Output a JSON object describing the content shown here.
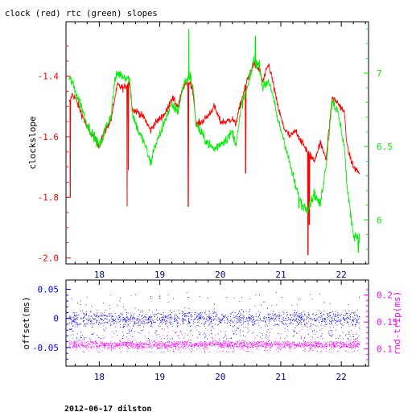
{
  "figure": {
    "title": "clock (red) rtc (green) slopes",
    "footer": "2012-06-17 dilston"
  },
  "colors": {
    "axis": "#000000",
    "clock": "#ff0000",
    "rtc": "#00ee00",
    "offset": "#0000ff",
    "rndtrip": "#ff00ff"
  },
  "chart_data": [
    {
      "type": "line",
      "title": "clock (red) rtc (green) slopes",
      "xlabel": "",
      "ylabel": "clockslope",
      "y2label": "",
      "xlim": [
        17.45,
        22.45
      ],
      "ylim": [
        -2.02,
        -1.22
      ],
      "y2lim": [
        5.7,
        7.35
      ],
      "xticks": [
        18,
        19,
        20,
        21,
        22
      ],
      "yticks": [
        -2,
        -1.8,
        -1.6,
        -1.4
      ],
      "y2ticks": [
        6,
        6.5,
        7
      ],
      "grid": false,
      "series": [
        {
          "name": "clock",
          "axis": "left",
          "color": "#ff0000",
          "x": [
            17.5,
            17.55,
            17.6,
            17.7,
            17.8,
            17.9,
            18.0,
            18.05,
            18.1,
            18.2,
            18.25,
            18.3,
            18.4,
            18.5,
            18.55,
            18.65,
            18.75,
            18.85,
            18.9,
            19.0,
            19.1,
            19.2,
            19.3,
            19.4,
            19.5,
            19.55,
            19.6,
            19.7,
            19.8,
            19.9,
            20.0,
            20.1,
            20.2,
            20.25,
            20.3,
            20.35,
            20.45,
            20.55,
            20.65,
            20.7,
            20.8,
            20.85,
            20.95,
            21.05,
            21.15,
            21.25,
            21.35,
            21.45,
            21.55,
            21.65,
            21.75,
            21.85,
            21.95,
            22.05,
            22.1,
            22.2,
            22.3
          ],
          "y": [
            -1.49,
            -1.46,
            -1.47,
            -1.52,
            -1.57,
            -1.6,
            -1.63,
            -1.6,
            -1.58,
            -1.54,
            -1.48,
            -1.43,
            -1.44,
            -1.42,
            -1.51,
            -1.52,
            -1.54,
            -1.58,
            -1.56,
            -1.54,
            -1.52,
            -1.47,
            -1.5,
            -1.43,
            -1.42,
            -1.45,
            -1.56,
            -1.55,
            -1.53,
            -1.5,
            -1.55,
            -1.55,
            -1.54,
            -1.56,
            -1.52,
            -1.48,
            -1.41,
            -1.36,
            -1.38,
            -1.42,
            -1.36,
            -1.4,
            -1.5,
            -1.57,
            -1.6,
            -1.58,
            -1.62,
            -1.65,
            -1.68,
            -1.62,
            -1.67,
            -1.47,
            -1.49,
            -1.52,
            -1.64,
            -1.7,
            -1.72
          ],
          "spikes": [
            {
              "x": 17.52,
              "y": -1.8
            },
            {
              "x": 18.46,
              "y": -1.83
            },
            {
              "x": 18.48,
              "y": -1.71
            },
            {
              "x": 19.47,
              "y": -1.83
            },
            {
              "x": 20.42,
              "y": -1.72
            },
            {
              "x": 21.45,
              "y": -1.99
            },
            {
              "x": 21.47,
              "y": -1.89
            }
          ]
        },
        {
          "name": "rtc",
          "axis": "right",
          "color": "#00ee00",
          "x": [
            17.5,
            17.55,
            17.6,
            17.7,
            17.8,
            17.9,
            18.0,
            18.05,
            18.1,
            18.2,
            18.25,
            18.3,
            18.4,
            18.5,
            18.55,
            18.65,
            18.75,
            18.85,
            18.9,
            19.0,
            19.1,
            19.2,
            19.3,
            19.4,
            19.5,
            19.55,
            19.6,
            19.7,
            19.8,
            19.9,
            20.0,
            20.1,
            20.2,
            20.25,
            20.3,
            20.35,
            20.45,
            20.55,
            20.65,
            20.7,
            20.8,
            20.85,
            20.95,
            21.05,
            21.15,
            21.25,
            21.35,
            21.45,
            21.55,
            21.65,
            21.75,
            21.85,
            21.95,
            22.05,
            22.1,
            22.2,
            22.3
          ],
          "y": [
            6.96,
            6.94,
            6.88,
            6.78,
            6.65,
            6.58,
            6.5,
            6.55,
            6.62,
            6.72,
            6.93,
            7.0,
            6.98,
            6.96,
            6.72,
            6.6,
            6.52,
            6.38,
            6.48,
            6.58,
            6.7,
            6.78,
            6.74,
            6.93,
            6.98,
            6.9,
            6.65,
            6.58,
            6.52,
            6.48,
            6.52,
            6.55,
            6.6,
            6.52,
            6.62,
            6.78,
            6.9,
            7.08,
            7.05,
            6.9,
            6.95,
            6.88,
            6.68,
            6.55,
            6.38,
            6.22,
            6.1,
            6.08,
            6.18,
            6.1,
            6.38,
            6.82,
            6.72,
            6.5,
            6.2,
            5.9,
            5.88
          ],
          "spikes": [
            {
              "x": 19.48,
              "y": 7.3
            },
            {
              "x": 20.58,
              "y": 7.25
            },
            {
              "x": 21.3,
              "y": 6.08
            },
            {
              "x": 22.28,
              "y": 5.78
            }
          ]
        }
      ]
    },
    {
      "type": "scatter",
      "xlabel": "",
      "ylabel": "offset(ms)",
      "y2label": "rnd-trip(ms)",
      "xlim": [
        17.45,
        22.45
      ],
      "ylim": [
        -0.082,
        0.066
      ],
      "y2lim": [
        0.068,
        0.228
      ],
      "xticks": [
        18,
        19,
        20,
        21,
        22
      ],
      "yticks": [
        -0.05,
        0,
        0.05
      ],
      "ytick_labels": [
        "-0.05",
        "0",
        "0.05"
      ],
      "y2ticks": [
        0.1,
        0.15,
        0.2
      ],
      "grid": false,
      "series": [
        {
          "name": "offset",
          "axis": "left",
          "color": "#0000ff",
          "x_range": [
            17.5,
            22.3
          ],
          "center": 0.0,
          "core_spread": 0.012,
          "tail_range": [
            -0.035,
            0.045
          ]
        },
        {
          "name": "rnd-trip",
          "axis": "right",
          "color": "#ff00ff",
          "x_range": [
            17.5,
            22.3
          ],
          "center": 0.108,
          "core_spread": 0.007,
          "tail_range": [
            0.094,
            0.155
          ]
        }
      ]
    }
  ]
}
